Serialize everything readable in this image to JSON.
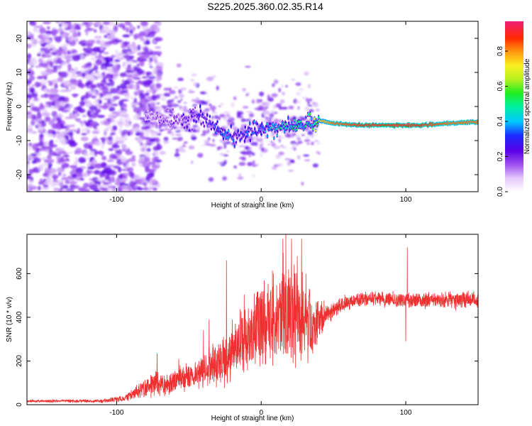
{
  "title": "S225.2025.360.02.35.R14",
  "chart_data": [
    {
      "type": "heatmap",
      "xlabel": "Height of straight line (km)",
      "ylabel": "Frequency (Hz)",
      "xlim": [
        -162,
        150
      ],
      "ylim": [
        -25,
        25
      ],
      "xticks": [
        -100,
        0,
        100
      ],
      "yticks": [
        -20,
        -10,
        0,
        10,
        20
      ],
      "colorbar": {
        "label": "Normalized spectral amplitude",
        "range": [
          0,
          0.97
        ],
        "ticks": [
          "0.0",
          "0.2",
          "0.4",
          "0.6",
          "0.8"
        ],
        "tick_values": [
          0,
          0.2,
          0.4,
          0.6,
          0.8
        ],
        "colormap": "rainbow (white → violet → blue → cyan → green → yellow → orange → red → magenta)"
      },
      "ridge": {
        "description": "Doppler frequency ridge",
        "x": [
          -75,
          -60,
          -45,
          -35,
          -25,
          -15,
          -5,
          5,
          15,
          25,
          35,
          40,
          50,
          70,
          90,
          110,
          130,
          148
        ],
        "freq_hz": [
          -3,
          -4,
          -3,
          -5,
          -8,
          -9,
          -7,
          -6,
          -6,
          -6,
          -5,
          -4,
          -5,
          -5.5,
          -5.5,
          -5.5,
          -5,
          -4.5
        ],
        "amplitude": [
          0.15,
          0.2,
          0.25,
          0.3,
          0.35,
          0.3,
          0.35,
          0.4,
          0.45,
          0.5,
          0.55,
          0.75,
          0.85,
          0.9,
          0.9,
          0.9,
          0.85,
          0.85
        ]
      },
      "noise_region": {
        "x_range": [
          -162,
          -70
        ],
        "freq_range": [
          -25,
          25
        ],
        "amplitude": [
          0.05,
          0.25
        ]
      }
    },
    {
      "type": "line",
      "xlabel": "Height of straight line (km)",
      "ylabel": "SNR (10 * v/v)",
      "xlim": [
        -162,
        150
      ],
      "ylim": [
        0,
        780
      ],
      "xticks": [
        -100,
        0,
        100
      ],
      "yticks": [
        0,
        200,
        400,
        600
      ],
      "color": "#ee3030",
      "envelope": {
        "x": [
          -162,
          -110,
          -95,
          -85,
          -75,
          -65,
          -55,
          -45,
          -35,
          -25,
          -15,
          -5,
          5,
          15,
          25,
          35,
          45,
          55,
          65,
          80,
          100,
          120,
          150
        ],
        "mean": [
          15,
          15,
          25,
          50,
          80,
          80,
          100,
          120,
          150,
          170,
          240,
          300,
          330,
          380,
          360,
          330,
          400,
          450,
          470,
          480,
          470,
          470,
          475
        ],
        "noise": [
          8,
          10,
          20,
          50,
          70,
          70,
          80,
          90,
          120,
          150,
          200,
          260,
          260,
          300,
          300,
          200,
          60,
          50,
          45,
          45,
          45,
          50,
          50
        ]
      },
      "spikes": [
        {
          "x": -72,
          "y": 235
        },
        {
          "x": -57,
          "y": 210
        },
        {
          "x": -40,
          "y": 340
        },
        {
          "x": -36,
          "y": 390
        },
        {
          "x": -24,
          "y": 660
        },
        {
          "x": -20,
          "y": 390
        },
        {
          "x": 2,
          "y": 510
        },
        {
          "x": 8,
          "y": 540
        },
        {
          "x": 15,
          "y": 760
        },
        {
          "x": 17,
          "y": 780
        },
        {
          "x": 19,
          "y": 620
        },
        {
          "x": 21,
          "y": 760
        },
        {
          "x": 25,
          "y": 680
        },
        {
          "x": 28,
          "y": 760
        },
        {
          "x": 31,
          "y": 600
        },
        {
          "x": 101,
          "y": 720
        },
        {
          "x": 100,
          "y": 290
        }
      ]
    }
  ]
}
